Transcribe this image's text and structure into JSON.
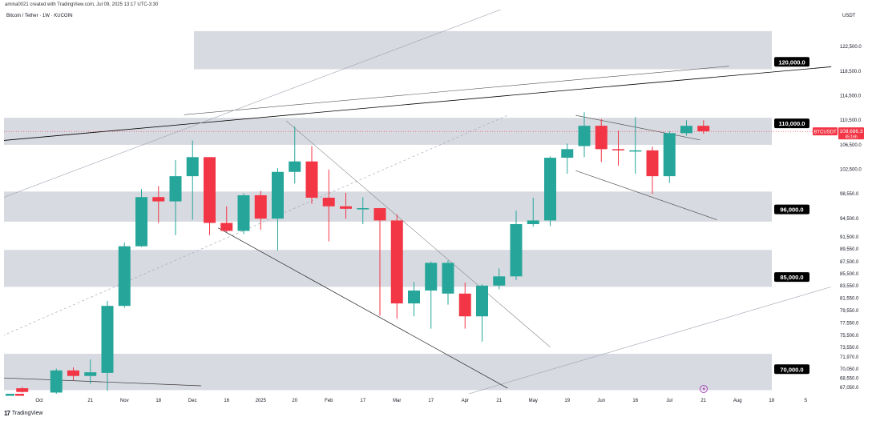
{
  "header": {
    "caption": "amina0021 created with TradingView.com, Jul 09, 2025 13:17 UTC-3:30",
    "symbol": "Bitcoin / Tether · 1W · KUCOIN",
    "currency": "USDT"
  },
  "footer": {
    "logo": "TradingView"
  },
  "chart_data": {
    "type": "candlestick",
    "title": "Bitcoin / Tether · 1W · KUCOIN",
    "ylim": [
      66000,
      128500
    ],
    "y_ticks": [
      "67,050.0",
      "68,550.0",
      "70,050.0",
      "71,970.0",
      "73,550.0",
      "75,500.0",
      "77,550.0",
      "79,550.0",
      "81,550.0",
      "83,550.0",
      "85,500.0",
      "87,500.0",
      "89,550.0",
      "91,500.0",
      "94,500.0",
      "98,550.0",
      "102,500.0",
      "106,500.0",
      "110,500.0",
      "114,500.0",
      "118,500.0",
      "122,500.0"
    ],
    "y_tick_values": [
      67050,
      68550,
      70050,
      71970,
      73550,
      75500,
      77550,
      79550,
      81550,
      83550,
      85500,
      87500,
      89550,
      91500,
      94500,
      98550,
      102500,
      106500,
      110500,
      114500,
      118500,
      122500
    ],
    "x_labels": [
      {
        "label": "Oct",
        "w": 0.0
      },
      {
        "label": "21",
        "w": 3.0
      },
      {
        "label": "Nov",
        "w": 5.0
      },
      {
        "label": "18",
        "w": 7.0
      },
      {
        "label": "Dec",
        "w": 9.0
      },
      {
        "label": "16",
        "w": 11.0
      },
      {
        "label": "2025",
        "w": 13.0
      },
      {
        "label": "20",
        "w": 15.0
      },
      {
        "label": "Feb",
        "w": 17.0
      },
      {
        "label": "17",
        "w": 19.0
      },
      {
        "label": "Mar",
        "w": 21.0
      },
      {
        "label": "17",
        "w": 23.0
      },
      {
        "label": "Apr",
        "w": 25.0
      },
      {
        "label": "21",
        "w": 27.0
      },
      {
        "label": "May",
        "w": 29.0
      },
      {
        "label": "19",
        "w": 31.0
      },
      {
        "label": "Jun",
        "w": 33.0
      },
      {
        "label": "16",
        "w": 35.0
      },
      {
        "label": "Jul",
        "w": 37.0
      },
      {
        "label": "21",
        "w": 39.0
      },
      {
        "label": "Aug",
        "w": 41.0
      },
      {
        "label": "18",
        "w": 43.0
      },
      {
        "label": "S",
        "w": 45.0
      }
    ],
    "candles": [
      {
        "w": -1,
        "o": 66900,
        "h": 67100,
        "l": 66200,
        "c": 66300
      },
      {
        "w": 1,
        "o": 66200,
        "h": 70100,
        "l": 66000,
        "c": 69800
      },
      {
        "w": 2,
        "o": 69800,
        "h": 70300,
        "l": 68200,
        "c": 68900
      },
      {
        "w": 3,
        "o": 68900,
        "h": 71600,
        "l": 67600,
        "c": 69500
      },
      {
        "w": 4,
        "o": 69400,
        "h": 81100,
        "l": 66500,
        "c": 80300
      },
      {
        "w": 5,
        "o": 80300,
        "h": 90600,
        "l": 80000,
        "c": 90000
      },
      {
        "w": 6,
        "o": 90000,
        "h": 99300,
        "l": 89900,
        "c": 98000
      },
      {
        "w": 7,
        "o": 98000,
        "h": 99800,
        "l": 93800,
        "c": 97300
      },
      {
        "w": 8,
        "o": 97300,
        "h": 104000,
        "l": 91800,
        "c": 101400
      },
      {
        "w": 9,
        "o": 101400,
        "h": 107200,
        "l": 94300,
        "c": 104500
      },
      {
        "w": 10,
        "o": 104500,
        "h": 104500,
        "l": 91800,
        "c": 93800
      },
      {
        "w": 11,
        "o": 93800,
        "h": 96500,
        "l": 92300,
        "c": 92500
      },
      {
        "w": 12,
        "o": 92500,
        "h": 98600,
        "l": 92000,
        "c": 98300
      },
      {
        "w": 13,
        "o": 98300,
        "h": 99000,
        "l": 92700,
        "c": 94500
      },
      {
        "w": 14,
        "o": 94500,
        "h": 102700,
        "l": 89300,
        "c": 102100
      },
      {
        "w": 15,
        "o": 102100,
        "h": 109500,
        "l": 100200,
        "c": 103800
      },
      {
        "w": 16,
        "o": 103800,
        "h": 106300,
        "l": 96900,
        "c": 97900
      },
      {
        "w": 17,
        "o": 97900,
        "h": 102500,
        "l": 90800,
        "c": 96500
      },
      {
        "w": 18,
        "o": 96500,
        "h": 98700,
        "l": 94500,
        "c": 96100
      },
      {
        "w": 19,
        "o": 96100,
        "h": 98000,
        "l": 93600,
        "c": 96200
      },
      {
        "w": 20,
        "o": 96200,
        "h": 96200,
        "l": 78700,
        "c": 94200
      },
      {
        "w": 21,
        "o": 94200,
        "h": 95200,
        "l": 78200,
        "c": 80700
      },
      {
        "w": 22,
        "o": 80700,
        "h": 84200,
        "l": 78600,
        "c": 82800
      },
      {
        "w": 23,
        "o": 82800,
        "h": 87500,
        "l": 76600,
        "c": 87300
      },
      {
        "w": 24,
        "o": 82300,
        "h": 87700,
        "l": 80500,
        "c": 87300
      },
      {
        "w": 25,
        "o": 82300,
        "h": 84100,
        "l": 76600,
        "c": 78600
      },
      {
        "w": 26,
        "o": 78600,
        "h": 83800,
        "l": 74500,
        "c": 83600
      },
      {
        "w": 27,
        "o": 83600,
        "h": 86400,
        "l": 83000,
        "c": 85100
      },
      {
        "w": 28,
        "o": 85100,
        "h": 95800,
        "l": 84500,
        "c": 93600
      },
      {
        "w": 29,
        "o": 93600,
        "h": 97900,
        "l": 93200,
        "c": 94200
      },
      {
        "w": 30,
        "o": 94200,
        "h": 104600,
        "l": 93300,
        "c": 104400
      },
      {
        "w": 31,
        "o": 104400,
        "h": 106700,
        "l": 101800,
        "c": 105800
      },
      {
        "w": 32,
        "o": 106300,
        "h": 111800,
        "l": 104500,
        "c": 109600
      },
      {
        "w": 33,
        "o": 109600,
        "h": 110700,
        "l": 103700,
        "c": 105800
      },
      {
        "w": 34,
        "o": 105800,
        "h": 108800,
        "l": 103100,
        "c": 105600
      },
      {
        "w": 35,
        "o": 105600,
        "h": 111000,
        "l": 101800,
        "c": 105600
      },
      {
        "w": 36,
        "o": 105600,
        "h": 106200,
        "l": 98500,
        "c": 101400
      },
      {
        "w": 37,
        "o": 101400,
        "h": 108700,
        "l": 100300,
        "c": 108400
      },
      {
        "w": 38,
        "o": 108400,
        "h": 110500,
        "l": 108000,
        "c": 109600
      },
      {
        "w": 39,
        "o": 109600,
        "h": 110500,
        "l": 108300,
        "c": 108700
      }
    ],
    "price_levels": [
      {
        "label": "120,000.0",
        "value": 120000
      },
      {
        "label": "110,000.0",
        "value": 110000
      },
      {
        "label": "96,000.0",
        "value": 96000
      },
      {
        "label": "85,000.0",
        "value": 85000
      },
      {
        "label": "70,000.0",
        "value": 70000
      }
    ],
    "zones": [
      {
        "from": 118800,
        "to": 125000
      },
      {
        "from": 106500,
        "to": 110900
      },
      {
        "from": 94000,
        "to": 98900
      },
      {
        "from": 83400,
        "to": 89400
      },
      {
        "from": 66600,
        "to": 72500
      }
    ],
    "trendlines": [
      {
        "w1": -5,
        "p1": 106500,
        "w2": 46.5,
        "p2": 119200,
        "style": "solid",
        "color": "#000000",
        "width": 0.8
      },
      {
        "w1": 8.5,
        "p1": 111400,
        "w2": 40.5,
        "p2": 119300,
        "style": "solid",
        "color": "#555555",
        "width": 0.6
      },
      {
        "w1": -5,
        "p1": 72000,
        "w2": 27.5,
        "p2": 111300,
        "style": "dashed",
        "color": "#9aa1ad",
        "width": 0.6
      },
      {
        "w1": -5,
        "p1": 94900,
        "w2": 29,
        "p2": 130500,
        "style": "solid",
        "color": "#9aa1ad",
        "width": 0.6
      },
      {
        "w1": 24,
        "p1": 65000,
        "w2": 46.5,
        "p2": 83400,
        "style": "solid",
        "color": "#9aa1ad",
        "width": 0.6
      },
      {
        "w1": 14.5,
        "p1": 110400,
        "w2": 30,
        "p2": 73600,
        "style": "solid",
        "color": "#888888",
        "width": 0.6
      },
      {
        "w1": 10.5,
        "p1": 93000,
        "w2": 27.5,
        "p2": 66900,
        "style": "solid",
        "color": "#222222",
        "width": 0.7
      },
      {
        "w1": -5,
        "p1": 68900,
        "w2": 9.5,
        "p2": 67300,
        "style": "solid",
        "color": "#333333",
        "width": 0.7
      },
      {
        "w1": 31.5,
        "p1": 111300,
        "w2": 38.8,
        "p2": 107300,
        "style": "solid",
        "color": "#555555",
        "width": 0.7
      },
      {
        "w1": 31.5,
        "p1": 102300,
        "w2": 39.8,
        "p2": 94300,
        "style": "solid",
        "color": "#555555",
        "width": 0.7
      }
    ],
    "current_price": {
      "symbol": "BTCUSDT",
      "value": 108686.3,
      "label": "108,686.3",
      "sub": "45:16h"
    },
    "colors": {
      "up": "#26a69a",
      "down": "#f23645",
      "zone": "#d1d4dc",
      "price_tag": "#f23645",
      "level_tag": "#000000"
    }
  }
}
